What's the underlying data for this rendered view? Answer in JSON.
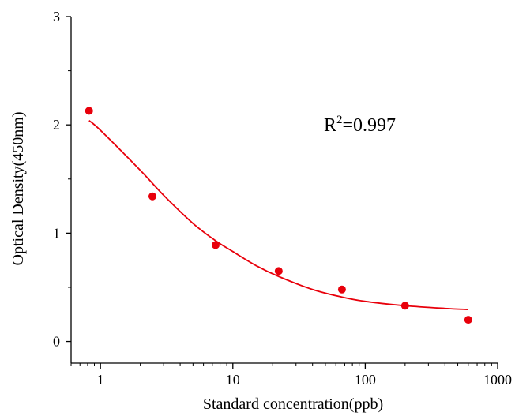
{
  "chart_data": {
    "type": "scatter",
    "xlabel": "Standard concentration(ppb)",
    "ylabel": "Optical Density(450nm)",
    "x_scale": "log",
    "xlim": [
      0.6,
      1000
    ],
    "ylim": [
      -0.2,
      3
    ],
    "x_ticks": [
      1,
      10,
      100,
      1000
    ],
    "x_tick_labels": [
      "1",
      "10",
      "100",
      "1000"
    ],
    "y_ticks": [
      0,
      1,
      2,
      3
    ],
    "y_tick_labels": [
      "0",
      "1",
      "2",
      "3"
    ],
    "grid": false,
    "annotation": {
      "base": "R",
      "sup": "2",
      "rest": "=0.997"
    },
    "colors": {
      "points": "#e8000b",
      "fit": "#e8000b",
      "axis": "#000000"
    },
    "series": [
      {
        "kind": "points",
        "x": [
          0.82,
          2.47,
          7.41,
          22.2,
          66.7,
          200,
          600
        ],
        "y": [
          2.13,
          1.34,
          0.89,
          0.65,
          0.48,
          0.33,
          0.2
        ]
      },
      {
        "kind": "fit-curve",
        "x": [
          0.82,
          1,
          2,
          3,
          5,
          7.41,
          10,
          15,
          22.2,
          40,
          66.7,
          100,
          200,
          400,
          600
        ],
        "y": [
          2.04,
          1.95,
          1.58,
          1.35,
          1.09,
          0.93,
          0.83,
          0.7,
          0.6,
          0.48,
          0.41,
          0.37,
          0.33,
          0.305,
          0.295
        ]
      }
    ]
  }
}
